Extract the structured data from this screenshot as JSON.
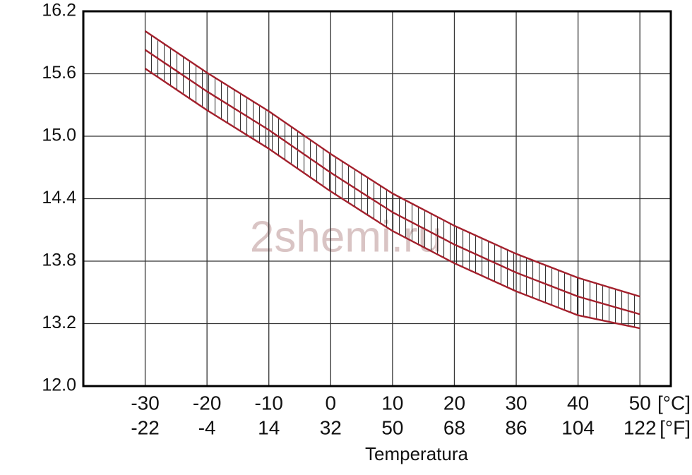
{
  "chart_data": {
    "type": "line",
    "watermark": "2shemi.ru",
    "x_label": "Temperatura",
    "x": [
      -30,
      -20,
      -10,
      0,
      10,
      20,
      30,
      40,
      50
    ],
    "xlim": [
      -40,
      55
    ],
    "xticks": [
      -30,
      -20,
      -10,
      0,
      10,
      20,
      30,
      40,
      50
    ],
    "x_unit": "[°C]",
    "x2lim": [
      -40,
      131
    ],
    "x2ticks": [
      -22,
      -4,
      14,
      32,
      50,
      68,
      86,
      104,
      122
    ],
    "x2_unit": "[°F]",
    "ylim": [
      12.0,
      16.2
    ],
    "yticks": [
      {
        "value": 12.0,
        "label": "12.0"
      },
      13.2,
      13.8,
      14.4,
      {
        "value": 15.0,
        "label": "15.0"
      },
      15.6,
      16.2
    ],
    "grid": true,
    "series": [
      {
        "color": "#a3202c",
        "values": [
          16.01,
          15.61,
          15.24,
          14.83,
          14.45,
          14.14,
          13.87,
          13.64,
          13.46
        ]
      },
      {
        "color": "#a3202c",
        "values": [
          15.83,
          15.43,
          15.06,
          14.65,
          14.27,
          13.96,
          13.69,
          13.46,
          13.29
        ]
      },
      {
        "color": "#a3202c",
        "values": [
          15.65,
          15.25,
          14.88,
          14.47,
          14.09,
          13.78,
          13.51,
          13.28,
          13.11
        ]
      }
    ]
  }
}
